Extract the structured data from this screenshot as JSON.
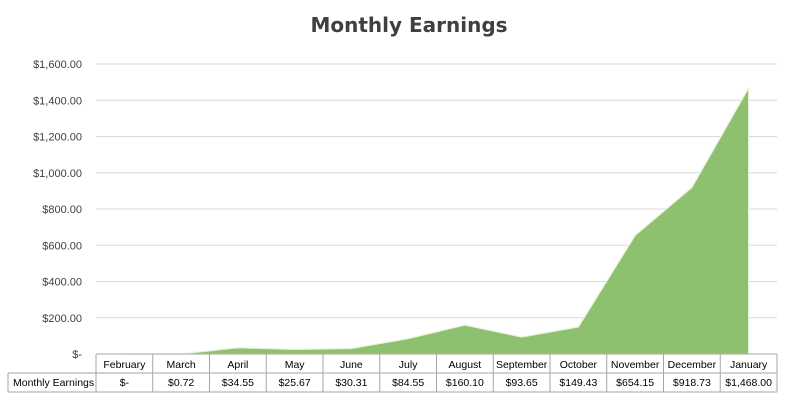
{
  "chart_data": {
    "type": "area",
    "title": "Monthly Earnings",
    "xlabel": "",
    "ylabel": "",
    "categories": [
      "February",
      "March",
      "April",
      "May",
      "June",
      "July",
      "August",
      "September",
      "October",
      "November",
      "December",
      "January"
    ],
    "series": [
      {
        "name": "Monthly Earnings",
        "values": [
          0,
          0.72,
          34.55,
          25.67,
          30.31,
          84.55,
          160.1,
          93.65,
          149.43,
          654.15,
          918.73,
          1468.0
        ],
        "table_labels": [
          "$-",
          "$0.72",
          "$34.55",
          "$25.67",
          "$30.31",
          "$84.55",
          "$160.10",
          "$93.65",
          "$149.43",
          "$654.15",
          "$918.73",
          "$1,468.00"
        ]
      }
    ],
    "ylim": [
      0,
      1600
    ],
    "y_ticks": [
      0,
      200,
      400,
      600,
      800,
      1000,
      1200,
      1400,
      1600
    ],
    "y_tick_labels": [
      "$-",
      "$200.00",
      "$400.00",
      "$600.00",
      "$800.00",
      "$1,000.00",
      "$1,200.00",
      "$1,400.00",
      "$1,600.00"
    ],
    "grid": true,
    "legend": "data-table",
    "colors": {
      "fill": "#8dc16f",
      "grid": "#d9d9d9",
      "table_border": "#a6a6a6",
      "text": "#404040"
    }
  }
}
